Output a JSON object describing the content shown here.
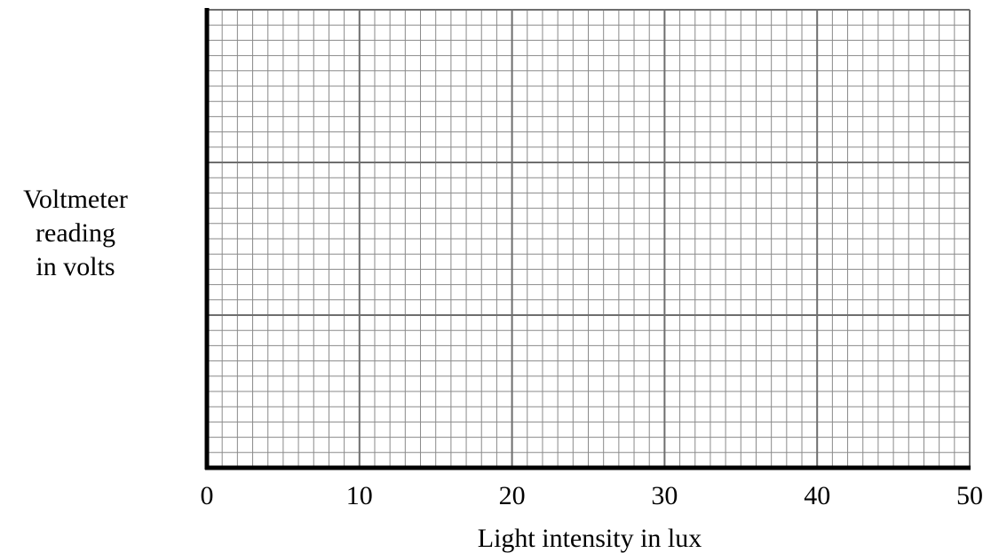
{
  "chart_data": {
    "type": "scatter",
    "title": "",
    "xlabel": "Light intensity in lux",
    "ylabel_lines": [
      "Voltmeter",
      "reading",
      "in volts"
    ],
    "xlim": [
      0,
      50
    ],
    "x_ticks": [
      "0",
      "10",
      "20",
      "30",
      "40",
      "50"
    ],
    "y_ticks": [],
    "grid": true,
    "series": []
  }
}
